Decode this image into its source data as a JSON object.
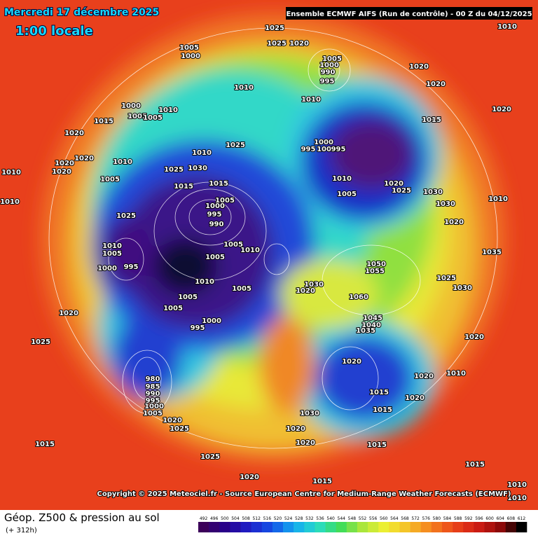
{
  "header": {
    "date": "Mercredi 17 décembre 2025",
    "time": "1:00 locale",
    "model": "Ensemble ECMWF AIFS  (Run de contrôle)  - 00 Z du 04/12/2025"
  },
  "map": {
    "isobar_labels": [
      "1025",
      "1025",
      "1020",
      "1010",
      "1005",
      "1000",
      "1005",
      "1000",
      "990",
      "995",
      "1020",
      "1020",
      "1010",
      "1010",
      "1000",
      "1005",
      "1005",
      "1010",
      "1015",
      "1020",
      "1015",
      "1020",
      "1025",
      "1000",
      "995",
      "1005",
      "995",
      "1010",
      "1020",
      "1010",
      "1020",
      "1020",
      "1025",
      "1030",
      "1010",
      "1005",
      "1015",
      "1015",
      "1010",
      "1005",
      "1020",
      "1025",
      "1030",
      "1010",
      "1010",
      "1000",
      "995",
      "990",
      "1005",
      "1025",
      "1030",
      "1020",
      "1010",
      "1005",
      "995",
      "1000",
      "1005",
      "1010",
      "1005",
      "1050",
      "1055",
      "1035",
      "1060",
      "1030",
      "1020",
      "1045",
      "1040",
      "1035",
      "1020",
      "1015",
      "1015",
      "1020",
      "1020",
      "1010",
      "1020",
      "1025",
      "1030",
      "980",
      "985",
      "990",
      "995",
      "1000",
      "1005",
      "1020",
      "1025",
      "1025",
      "1020",
      "1015",
      "1025",
      "1030",
      "1020",
      "1020",
      "1015",
      "1020",
      "1015",
      "1015",
      "1010",
      "1010",
      "995",
      "1000",
      "1005",
      "1005",
      "1010",
      "1005"
    ]
  },
  "footer": {
    "copyright": "Copyright © 2025 Meteociel.fr - Source European Centre for Medium-Range Weather Forecasts (ECMWF)",
    "title": "Géop. Z500 & pression au sol",
    "lead": "(+ 312h)"
  },
  "legend": {
    "values": [
      492,
      496,
      500,
      504,
      508,
      512,
      516,
      520,
      524,
      528,
      532,
      536,
      540,
      544,
      548,
      552,
      556,
      560,
      564,
      568,
      572,
      576,
      580,
      584,
      588,
      592,
      596,
      600,
      604,
      608,
      612
    ]
  }
}
